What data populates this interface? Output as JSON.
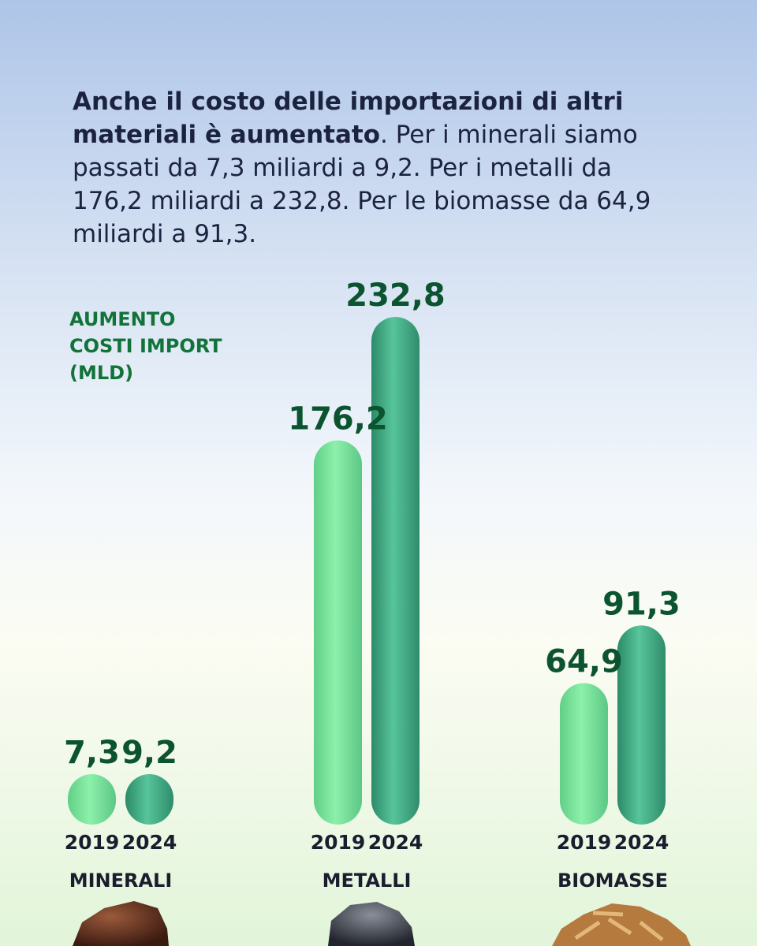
{
  "intro": {
    "bold": "Anche il costo delle importazioni di altri materiali è aumentato",
    "rest": ". Per i minerali siamo passati da 7,3 miliardi a 9,2. Per i metalli da 176,2 miliardi a 232,8. Per le biomasse da 64,9 miliardi a 91,3."
  },
  "chart_data": {
    "type": "bar",
    "title": "",
    "ylabel": "AUMENTO\nCOSTI IMPORT\n(MLD)",
    "xlabel": "",
    "categories": [
      "MINERALI",
      "METALLI",
      "BIOMASSE"
    ],
    "series": [
      {
        "name": "2019",
        "values": [
          7.3,
          176.2,
          64.9
        ],
        "labels": [
          "7,3",
          "176,2",
          "64,9"
        ]
      },
      {
        "name": "2024",
        "values": [
          9.2,
          232.8,
          91.3
        ],
        "labels": [
          "9,2",
          "232,8",
          "91,3"
        ]
      }
    ],
    "ylim": [
      0,
      232.8
    ],
    "grid": false,
    "legend": "none",
    "colors": {
      "2019": "#7fe8a0",
      "2024": "#3aa27d",
      "value_text": "#0c5430",
      "axis_label": "#127339"
    }
  }
}
